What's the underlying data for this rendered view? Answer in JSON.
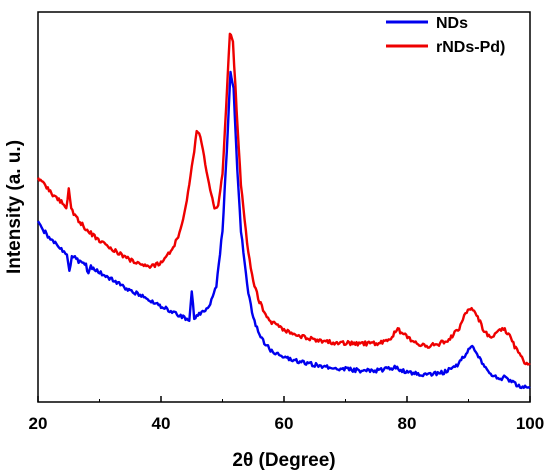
{
  "chart_data": {
    "type": "line",
    "title": "",
    "xlabel": "2θ (Degree)",
    "ylabel": "Intensity (a. u.)",
    "xlim": [
      20,
      100
    ],
    "xticks": [
      "20",
      "40",
      "60",
      "80",
      "100"
    ],
    "y_ticks_shown": false,
    "grid": false,
    "legend_position": "top-right",
    "series": [
      {
        "name": "NDs",
        "color": "#0000ee",
        "points": [
          [
            20,
            195
          ],
          [
            21,
            184
          ],
          [
            22,
            176
          ],
          [
            23,
            169
          ],
          [
            24,
            163
          ],
          [
            24.7,
            160
          ],
          [
            25.1,
            140
          ],
          [
            25.5,
            158
          ],
          [
            26,
            155
          ],
          [
            27,
            150
          ],
          [
            27.8,
            148
          ],
          [
            28.2,
            137
          ],
          [
            28.6,
            146
          ],
          [
            30,
            140
          ],
          [
            32,
            132
          ],
          [
            34,
            124
          ],
          [
            36,
            117
          ],
          [
            38,
            110
          ],
          [
            40,
            103
          ],
          [
            42,
            97
          ],
          [
            43,
            93
          ],
          [
            44,
            90
          ],
          [
            44.6,
            89
          ],
          [
            45.0,
            120
          ],
          [
            45.4,
            90
          ],
          [
            46,
            93
          ],
          [
            47,
            98
          ],
          [
            48,
            106
          ],
          [
            49,
            125
          ],
          [
            50,
            185
          ],
          [
            50.7,
            270
          ],
          [
            51.3,
            355
          ],
          [
            51.8,
            340
          ],
          [
            52.4,
            250
          ],
          [
            53,
            185
          ],
          [
            54,
            125
          ],
          [
            55,
            90
          ],
          [
            56,
            72
          ],
          [
            57,
            62
          ],
          [
            58,
            55
          ],
          [
            60,
            48
          ],
          [
            62,
            44
          ],
          [
            65,
            40
          ],
          [
            68,
            37
          ],
          [
            72,
            34
          ],
          [
            75,
            34
          ],
          [
            77,
            36
          ],
          [
            78,
            37
          ],
          [
            80,
            32
          ],
          [
            82,
            30
          ],
          [
            84,
            30
          ],
          [
            86,
            32
          ],
          [
            88,
            38
          ],
          [
            89,
            47
          ],
          [
            90,
            56
          ],
          [
            90.6,
            60
          ],
          [
            91.2,
            55
          ],
          [
            92,
            44
          ],
          [
            93,
            34
          ],
          [
            94,
            28
          ],
          [
            95,
            25
          ],
          [
            96,
            27
          ],
          [
            97,
            22
          ],
          [
            98,
            18
          ],
          [
            99,
            16
          ],
          [
            100,
            15
          ]
        ]
      },
      {
        "name": "rNDs-Pd)",
        "color": "#ee0000",
        "points": [
          [
            20,
            242
          ],
          [
            21,
            234
          ],
          [
            22,
            226
          ],
          [
            23,
            220
          ],
          [
            24,
            214
          ],
          [
            24.6,
            210
          ],
          [
            25.0,
            228
          ],
          [
            25.4,
            208
          ],
          [
            26,
            200
          ],
          [
            28,
            185
          ],
          [
            30,
            174
          ],
          [
            32,
            165
          ],
          [
            34,
            157
          ],
          [
            35,
            153
          ],
          [
            36,
            150
          ],
          [
            37,
            147
          ],
          [
            38,
            146
          ],
          [
            39,
            147
          ],
          [
            40,
            150
          ],
          [
            41,
            157
          ],
          [
            42,
            166
          ],
          [
            43,
            182
          ],
          [
            44,
            210
          ],
          [
            45,
            252
          ],
          [
            45.8,
            290
          ],
          [
            46.4,
            286
          ],
          [
            47,
            265
          ],
          [
            48,
            228
          ],
          [
            48.7,
            210
          ],
          [
            49.3,
            212
          ],
          [
            50,
            245
          ],
          [
            50.6,
            320
          ],
          [
            51.2,
            396
          ],
          [
            51.7,
            388
          ],
          [
            52.3,
            315
          ],
          [
            53,
            235
          ],
          [
            54,
            170
          ],
          [
            55,
            130
          ],
          [
            56,
            108
          ],
          [
            57,
            95
          ],
          [
            58,
            86
          ],
          [
            60,
            77
          ],
          [
            62,
            72
          ],
          [
            65,
            67
          ],
          [
            68,
            64
          ],
          [
            72,
            63
          ],
          [
            75,
            63
          ],
          [
            77,
            67
          ],
          [
            78.5,
            78
          ],
          [
            79.5,
            73
          ],
          [
            81,
            64
          ],
          [
            83,
            60
          ],
          [
            85,
            62
          ],
          [
            87,
            68
          ],
          [
            88.5,
            80
          ],
          [
            89.5,
            95
          ],
          [
            90.5,
            102
          ],
          [
            91.5,
            92
          ],
          [
            92.5,
            76
          ],
          [
            93.5,
            70
          ],
          [
            94.5,
            74
          ],
          [
            95.5,
            80
          ],
          [
            96.5,
            74
          ],
          [
            97.5,
            60
          ],
          [
            98.5,
            48
          ],
          [
            99.3,
            42
          ],
          [
            100,
            40
          ]
        ]
      }
    ]
  }
}
